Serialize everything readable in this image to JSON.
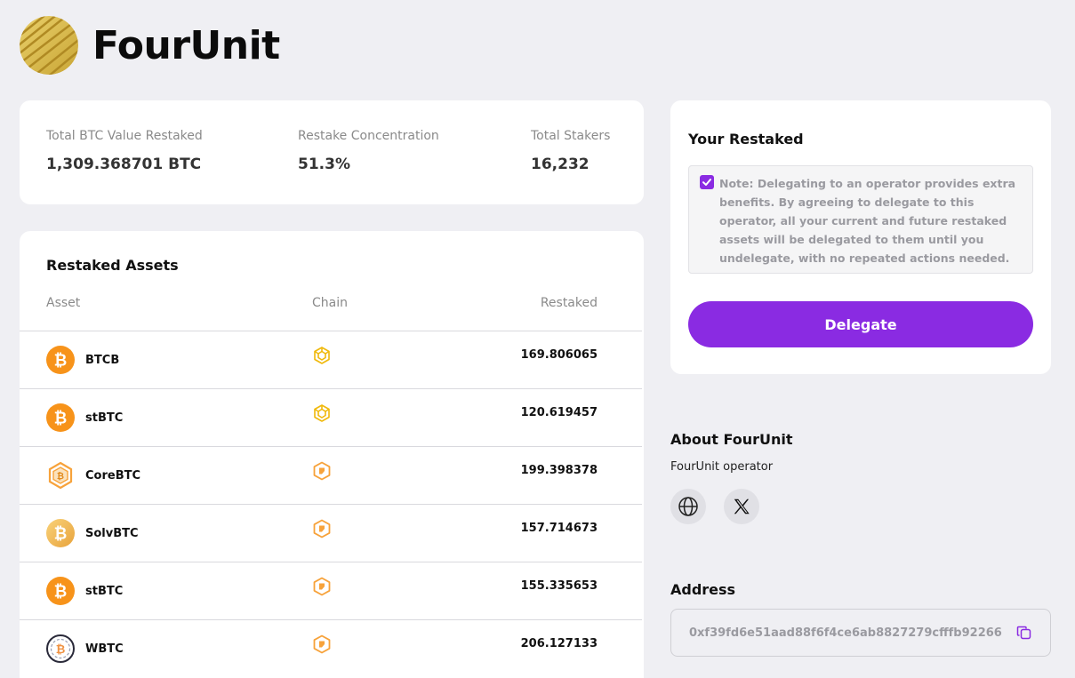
{
  "brand": {
    "name": "FourUnit"
  },
  "stats": {
    "total_btc": {
      "label": "Total BTC Value Restaked",
      "value": "1,309.368701 BTC"
    },
    "concentration": {
      "label": "Restake Concentration",
      "value": "51.3%"
    },
    "stakers": {
      "label": "Total Stakers",
      "value": "16,232"
    }
  },
  "assets": {
    "title": "Restaked Assets",
    "columns": {
      "asset": "Asset",
      "chain": "Chain",
      "restaked": "Restaked"
    },
    "rows": [
      {
        "name": "BTCB",
        "amount": "169.806065",
        "icon": "bitcoin-icon",
        "chain_icon": "bnb-chain-icon"
      },
      {
        "name": "stBTC",
        "amount": "120.619457",
        "icon": "bitcoin-icon",
        "chain_icon": "bnb-chain-icon"
      },
      {
        "name": "CoreBTC",
        "amount": "199.398378",
        "icon": "corebtc-icon",
        "chain_icon": "core-chain-icon"
      },
      {
        "name": "SolvBTC",
        "amount": "157.714673",
        "icon": "solvbtc-icon",
        "chain_icon": "core-chain-icon"
      },
      {
        "name": "stBTC",
        "amount": "155.335653",
        "icon": "bitcoin-icon",
        "chain_icon": "core-chain-icon"
      },
      {
        "name": "WBTC",
        "amount": "206.127133",
        "icon": "wbtc-icon",
        "chain_icon": "core-chain-icon"
      }
    ]
  },
  "restaked": {
    "title": "Your Restaked",
    "note": "Note: Delegating to an operator provides extra benefits. By agreeing to delegate to this operator, all your current and future restaked assets will be delegated to them until you undelegate, with no repeated actions needed.",
    "checked": true,
    "button_label": "Delegate"
  },
  "about": {
    "title": "About FourUnit",
    "subtitle": "FourUnit operator",
    "links": [
      "globe-icon",
      "x-logo-icon"
    ]
  },
  "address": {
    "title": "Address",
    "value": "0xf39fd6e51aad88f6f4ce6ab8827279cfffb92266"
  },
  "colors": {
    "accent": "#8a2be2",
    "bitcoin": "#f7931a",
    "chain_gold": "#f0b90b",
    "core_orange": "#f7a23a",
    "background": "#efeff3"
  }
}
